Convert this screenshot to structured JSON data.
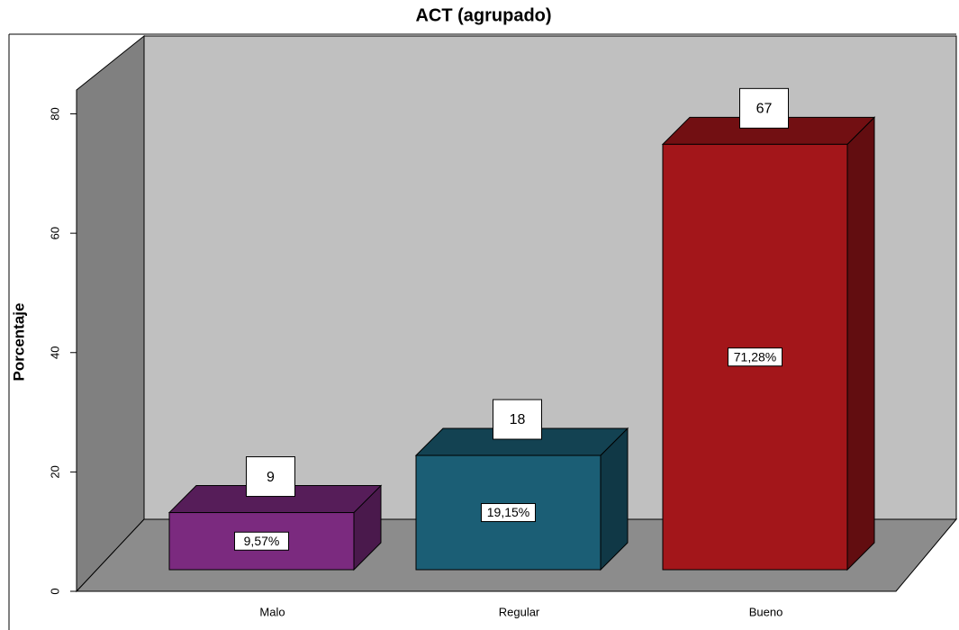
{
  "chart_data": {
    "type": "bar3d",
    "title": "ACT (agrupado)",
    "y_label": "Porcentaje",
    "categories": [
      "Malo",
      "Regular",
      "Bueno"
    ],
    "values": [
      9.57,
      19.15,
      71.28
    ],
    "value_labels": [
      "9,57%",
      "19,15%",
      "71,28%"
    ],
    "counts": [
      9,
      18,
      67
    ],
    "colors": [
      "#7b2a7f",
      "#1b5e75",
      "#a3161a"
    ],
    "ylim": [
      0,
      84
    ],
    "yticks": [
      0,
      20,
      40,
      60,
      80
    ]
  }
}
